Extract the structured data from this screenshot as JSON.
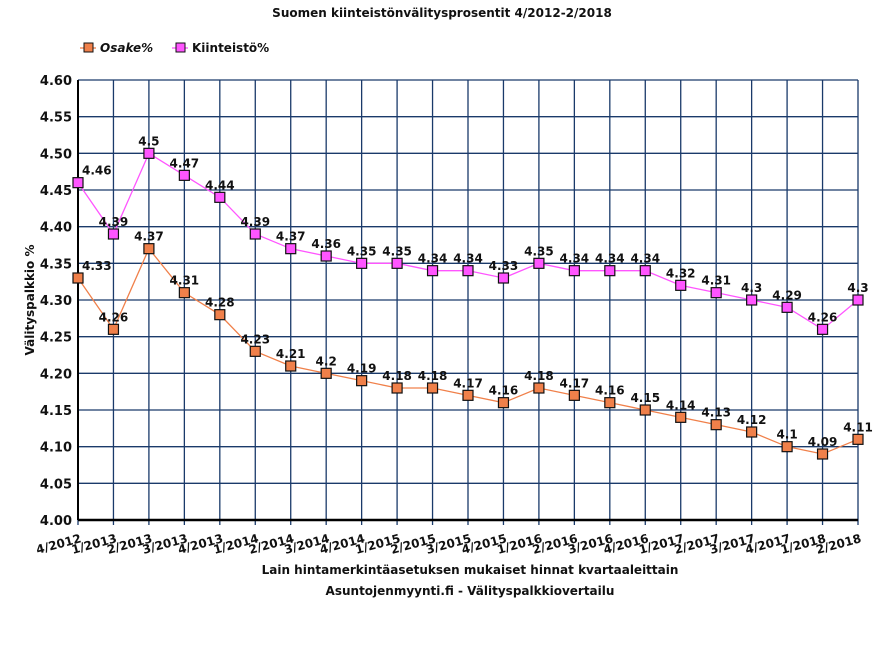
{
  "chart_data": {
    "type": "line",
    "title": "Suomen kiinteistönvälitysprosentit 4/2012-2/2018",
    "xlabel": "Lain hintamerkintäasetuksen mukaiset hinnat kvartaaleittain",
    "subtitle": "Asuntojenmyynti.fi - Välityspalkkiovertailu",
    "ylabel": "Välityspalkkio %",
    "ylim": [
      4.0,
      4.6
    ],
    "yticks": [
      "4.00",
      "4.05",
      "4.10",
      "4.15",
      "4.20",
      "4.25",
      "4.30",
      "4.35",
      "4.40",
      "4.45",
      "4.50",
      "4.55",
      "4.60"
    ],
    "grid": true,
    "legend_position": "top-left",
    "categories": [
      "4/2012",
      "1/2013",
      "2/2013",
      "3/2013",
      "4/2013",
      "1/2014",
      "2/2014",
      "3/2014",
      "4/2014",
      "1/2015",
      "2/2015",
      "3/2015",
      "4/2015",
      "1/2016",
      "2/2016",
      "3/2016",
      "4/2016",
      "1/2017",
      "2/2017",
      "3/2017",
      "4/2017",
      "1/2018",
      "2/2018"
    ],
    "series": [
      {
        "name": "Osake%",
        "color": "#f0804a",
        "values": [
          4.33,
          4.26,
          4.37,
          4.31,
          4.28,
          4.23,
          4.21,
          4.2,
          4.19,
          4.18,
          4.18,
          4.17,
          4.16,
          4.18,
          4.17,
          4.16,
          4.15,
          4.14,
          4.13,
          4.12,
          4.1,
          4.09,
          4.11
        ]
      },
      {
        "name": "Kiinteistö%",
        "color": "#ff55ff",
        "values": [
          4.46,
          4.39,
          4.5,
          4.47,
          4.44,
          4.39,
          4.37,
          4.36,
          4.35,
          4.35,
          4.34,
          4.34,
          4.33,
          4.35,
          4.34,
          4.34,
          4.34,
          4.32,
          4.31,
          4.3,
          4.29,
          4.26,
          4.3
        ]
      }
    ]
  }
}
